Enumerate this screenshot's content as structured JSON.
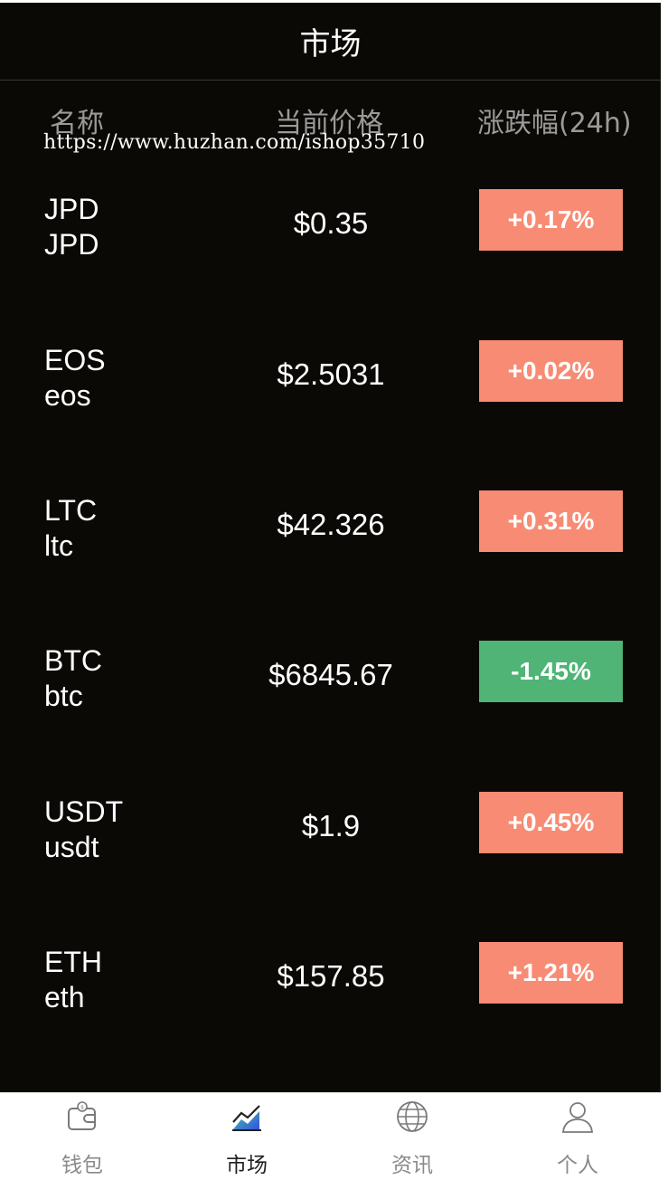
{
  "header": {
    "title": "市场"
  },
  "columns": {
    "name": "名称",
    "price": "当前价格",
    "change": "涨跌幅(24h)"
  },
  "watermark": "https://www.huzhan.com/ishop35710",
  "colors": {
    "background": "#0b0906",
    "up": "#f88b73",
    "down": "#4fb476"
  },
  "coins": [
    {
      "symbol": "JPD",
      "name": "JPD",
      "price": "$0.35",
      "change": "+0.17%",
      "direction": "up"
    },
    {
      "symbol": "EOS",
      "name": "eos",
      "price": "$2.5031",
      "change": "+0.02%",
      "direction": "up"
    },
    {
      "symbol": "LTC",
      "name": "ltc",
      "price": "$42.326",
      "change": "+0.31%",
      "direction": "up"
    },
    {
      "symbol": "BTC",
      "name": "btc",
      "price": "$6845.67",
      "change": "-1.45%",
      "direction": "down"
    },
    {
      "symbol": "USDT",
      "name": "usdt",
      "price": "$1.9",
      "change": "+0.45%",
      "direction": "up"
    },
    {
      "symbol": "ETH",
      "name": "eth",
      "price": "$157.85",
      "change": "+1.21%",
      "direction": "up"
    }
  ],
  "nav": [
    {
      "label": "钱包",
      "icon": "wallet-icon",
      "active": false
    },
    {
      "label": "市场",
      "icon": "chart-icon",
      "active": true
    },
    {
      "label": "资讯",
      "icon": "globe-icon",
      "active": false
    },
    {
      "label": "个人",
      "icon": "user-icon",
      "active": false
    }
  ]
}
